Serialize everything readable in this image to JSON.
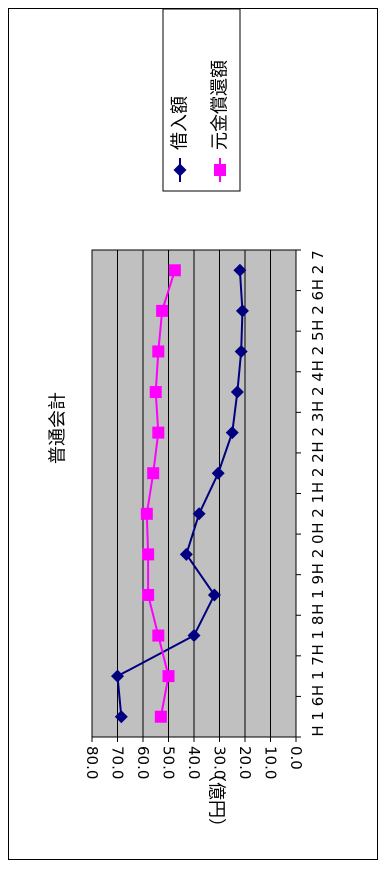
{
  "chart_data": {
    "type": "line",
    "title": "普通会計",
    "ylabel": "（億円）",
    "xlabel": "",
    "categories": [
      "H16",
      "H17",
      "H18",
      "H19",
      "H20",
      "H21",
      "H22",
      "H23",
      "H24",
      "H25",
      "H26",
      "H27"
    ],
    "ylim": [
      0,
      80
    ],
    "y_ticks": [
      "0.0",
      "10.0",
      "20.0",
      "30.0",
      "40.0",
      "50.0",
      "60.0",
      "70.0",
      "80.0"
    ],
    "grid": true,
    "legend_position": "top-right",
    "orientation": "rotated-90",
    "series": [
      {
        "name": "借入額",
        "color": "#000080",
        "marker": "diamond",
        "values": [
          68.5,
          70.0,
          40.0,
          32.0,
          43.0,
          38.0,
          30.5,
          25.0,
          23.0,
          21.5,
          21.0,
          22.0
        ]
      },
      {
        "name": "元金償還額",
        "color": "#ff00ff",
        "marker": "square",
        "values": [
          53.0,
          50.0,
          54.0,
          58.0,
          58.0,
          58.5,
          56.0,
          54.0,
          55.0,
          54.0,
          52.5,
          47.5
        ]
      }
    ]
  },
  "colors": {
    "plot_bg": "#c0c0c0",
    "gridline": "#000000"
  }
}
